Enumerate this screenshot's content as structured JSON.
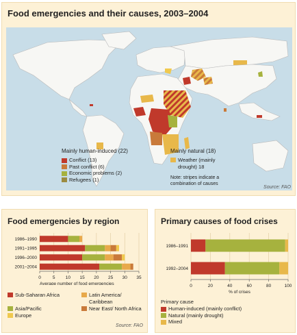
{
  "map_panel": {
    "title": "Food emergencies and their causes, 2003–2004",
    "source": "Source: FAO",
    "legend_human": {
      "heading": "Mainly human-induced (22)",
      "items": [
        {
          "label": "Conflict (13)",
          "color": "#c0392b"
        },
        {
          "label": "Past conflict (6)",
          "color": "#c97a3a"
        },
        {
          "label": "Economic problems (2)",
          "color": "#a6b23e"
        },
        {
          "label": "Refugees (1)",
          "color": "#9c8b40"
        }
      ]
    },
    "legend_natural": {
      "heading": "Mainly natural (18)",
      "items": [
        {
          "label": "Weather (mainly drought) 18",
          "color": "#e8b84a"
        }
      ],
      "note": "Note: stripes indicate a combination of causes"
    }
  },
  "region_panel": {
    "title": "Food emergencies by region",
    "source": "Source: FAO",
    "legend": [
      {
        "label": "Sub-Saharan Africa",
        "color": "#c0392b"
      },
      {
        "label": "Latin America/ Caribbean",
        "color": "#e8a94a"
      },
      {
        "label": "Asia/Pacific",
        "color": "#a6b23e"
      },
      {
        "label": "Near East/ North Africa",
        "color": "#c97a3a"
      },
      {
        "label": "Europe",
        "color": "#f0c94e"
      }
    ]
  },
  "causes_panel": {
    "title": "Primary causes of food crises",
    "legend_heading": "Primary cause",
    "legend": [
      {
        "label": "Human-induced (mainly conflict)",
        "color": "#c0392b"
      },
      {
        "label": "Natural (mainly drought)",
        "color": "#a6b23e"
      },
      {
        "label": "Mixed",
        "color": "#e8b84a"
      }
    ]
  },
  "chart_data": [
    {
      "type": "bar",
      "orientation": "horizontal",
      "stacked": true,
      "title": "Food emergencies by region",
      "xlabel": "Average number of food emergencies",
      "xlim": [
        0,
        35
      ],
      "xticks": [
        0,
        5,
        10,
        15,
        20,
        25,
        30,
        35
      ],
      "categories": [
        "1986–1990",
        "1991–1995",
        "1996–2000",
        "2001–2004"
      ],
      "series": [
        {
          "name": "Sub-Saharan Africa",
          "values": [
            10,
            16,
            15,
            21
          ],
          "color": "#c0392b"
        },
        {
          "name": "Asia/Pacific",
          "values": [
            4,
            7,
            8,
            8
          ],
          "color": "#a6b23e"
        },
        {
          "name": "Latin America/ Caribbean",
          "values": [
            1,
            2,
            3,
            3
          ],
          "color": "#e8a94a"
        },
        {
          "name": "Near East/ North Africa",
          "values": [
            0,
            2,
            3,
            1
          ],
          "color": "#c97a3a"
        },
        {
          "name": "Europe",
          "values": [
            0,
            1,
            1,
            0
          ],
          "color": "#f0c94e"
        }
      ]
    },
    {
      "type": "bar",
      "orientation": "horizontal",
      "stacked": true,
      "title": "Primary causes of food crises",
      "xlabel": "% of crises",
      "xlim": [
        0,
        100
      ],
      "xticks": [
        0,
        20,
        40,
        60,
        80,
        100
      ],
      "categories": [
        "1986–1991",
        "1992–2004"
      ],
      "series": [
        {
          "name": "Human-induced (mainly conflict)",
          "values": [
            15,
            35
          ],
          "color": "#c0392b"
        },
        {
          "name": "Natural (mainly drought)",
          "values": [
            82,
            56
          ],
          "color": "#a6b23e"
        },
        {
          "name": "Mixed",
          "values": [
            3,
            9
          ],
          "color": "#e8b84a"
        }
      ]
    }
  ]
}
